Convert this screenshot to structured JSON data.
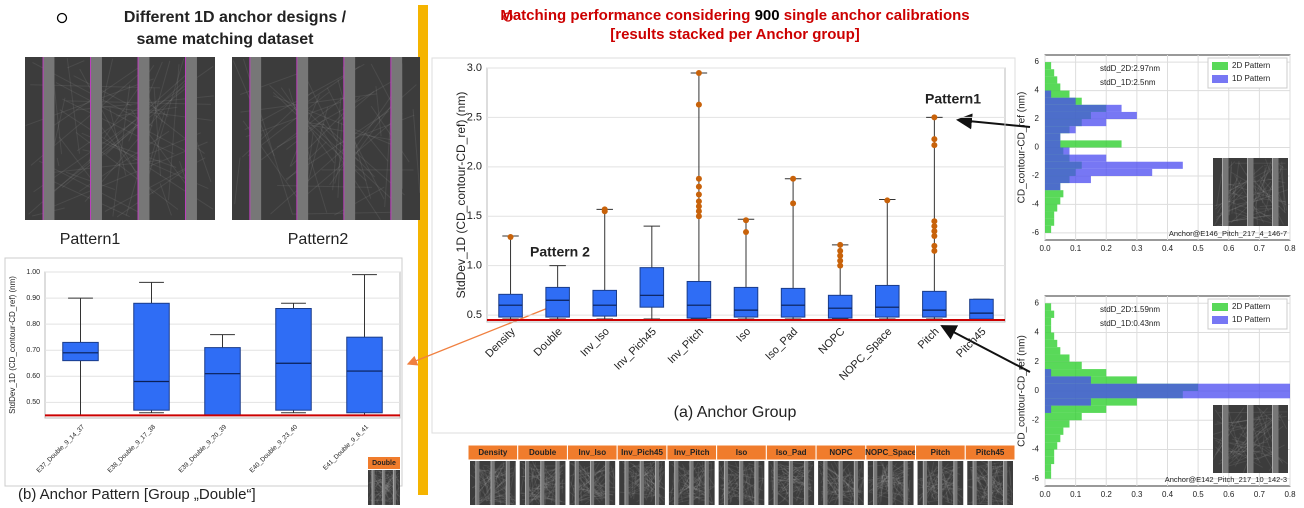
{
  "slide": {
    "left_heading": [
      "Different 1D anchor designs /",
      "same matching dataset"
    ],
    "pattern_labels": [
      "Pattern1",
      "Pattern2"
    ],
    "center_heading": [
      "Matching performance considering ",
      "900",
      " single anchor calibrations [results stacked per Anchor group]"
    ],
    "strip_labels": [
      "Density",
      "Double",
      "Inv_Iso",
      "Inv_Pich45",
      "Inv_Pitch",
      "Iso",
      "Iso_Pad",
      "NOPC",
      "NOPC_Space",
      "Pitch",
      "Pitch45"
    ],
    "thumb_label": "Double"
  },
  "chart_data": [
    {
      "type": "box",
      "ylabel": "StdDev_1D (CD_contour-CD_ref) (nm)",
      "xlabel": "(a) Anchor Group",
      "categories": [
        "Density",
        "Double",
        "Inv_Iso",
        "Inv_Pich45",
        "Inv_Pitch",
        "Iso",
        "Iso_Pad",
        "NOPC",
        "NOPC_Space",
        "Pitch",
        "Pitch45"
      ],
      "whisker_low": [
        0.46,
        0.46,
        0.46,
        0.46,
        0.46,
        0.46,
        0.46,
        0.46,
        0.46,
        0.46,
        0.46
      ],
      "q1": [
        0.48,
        0.48,
        0.49,
        0.58,
        0.47,
        0.48,
        0.48,
        0.47,
        0.48,
        0.48,
        0.46
      ],
      "median": [
        0.6,
        0.65,
        0.6,
        0.7,
        0.6,
        0.55,
        0.6,
        0.57,
        0.58,
        0.55,
        0.52
      ],
      "q3": [
        0.71,
        0.78,
        0.75,
        0.98,
        0.84,
        0.78,
        0.77,
        0.7,
        0.8,
        0.74,
        0.66
      ],
      "whisker_high": [
        1.3,
        1.0,
        1.57,
        1.4,
        2.95,
        1.47,
        1.88,
        1.21,
        1.67,
        2.5,
        0.66
      ],
      "outliers": [
        [
          1.29
        ],
        [],
        [
          1.55,
          1.57
        ],
        [],
        [
          2.95,
          2.63,
          1.88,
          1.8,
          1.72,
          1.65,
          1.6,
          1.55,
          1.5
        ],
        [
          1.46,
          1.34
        ],
        [
          1.88,
          1.63
        ],
        [
          1.21,
          1.15,
          1.1,
          1.05,
          1.0
        ],
        [
          1.66
        ],
        [
          2.5,
          2.28,
          2.22,
          1.45,
          1.4,
          1.35,
          1.3,
          1.2,
          1.15
        ],
        []
      ],
      "color": "#2f6df5",
      "outlier_color": "#c8620a",
      "ylim": [
        0.43,
        3.0
      ],
      "yticks": [
        0.5,
        {
          "value": 1,
          "label": "1.0"
        },
        1.5,
        {
          "value": 2,
          "label": "2.0"
        },
        2.5,
        {
          "value": 3,
          "label": "3.0"
        }
      ],
      "grid": true,
      "reference_line": {
        "value": 0.45,
        "color": "#cc0000"
      },
      "annotations": [
        {
          "text": "Pattern1"
        },
        {
          "text": "Pattern 2"
        }
      ]
    },
    {
      "type": "box",
      "ylabel": "StdDev_1D (CD_contour-CD_ref) (nm)",
      "xlabel": "(b) Anchor Pattern [Group „Double“]",
      "categories": [
        "E37_Double_9_14_37",
        "E38_Double_9_17_38",
        "E39_Double_9_20_39",
        "E40_Double_9_23_40",
        "E41_Double_9_8_41"
      ],
      "whisker_low": [
        0.45,
        0.46,
        0.45,
        0.46,
        0.45
      ],
      "q1": [
        0.66,
        0.47,
        0.45,
        0.47,
        0.46
      ],
      "median": [
        0.69,
        0.58,
        0.61,
        0.65,
        0.62
      ],
      "q3": [
        0.73,
        0.88,
        0.71,
        0.86,
        0.75
      ],
      "whisker_high": [
        0.9,
        0.96,
        0.76,
        0.88,
        0.99
      ],
      "outliers": [
        [],
        [],
        [],
        [],
        []
      ],
      "color": "#2f6df5",
      "outlier_color": "#c8620a",
      "ylim": [
        0.44,
        1.0
      ],
      "yticks": [
        {
          "value": 0.5,
          "label": "0.50"
        },
        {
          "value": 0.6,
          "label": "0.60"
        },
        {
          "value": 0.7,
          "label": "0.70"
        },
        {
          "value": 0.8,
          "label": "0.80"
        },
        {
          "value": 0.9,
          "label": "0.90"
        },
        {
          "value": 1,
          "label": "1.00"
        }
      ],
      "grid": true,
      "reference_line": {
        "value": 0.45,
        "color": "#cc0000"
      }
    },
    {
      "type": "histogram",
      "orientation": "horizontal",
      "ylabel": "CD_contour-CD_ref (nm)",
      "bins": [
        -6,
        -5.5,
        -5,
        -4.5,
        -4,
        -3.5,
        -3,
        -2.5,
        -2,
        -1.5,
        -1,
        -0.5,
        0,
        0.5,
        1,
        1.5,
        2,
        2.5,
        3,
        3.5,
        4,
        4.5,
        5,
        5.5,
        6
      ],
      "series": [
        {
          "name": "2D Pattern",
          "color": "#22cc22",
          "values": [
            0.02,
            0.03,
            0.03,
            0.04,
            0.05,
            0.06,
            0.05,
            0.08,
            0.1,
            0.12,
            0.08,
            0.06,
            0.25,
            0.05,
            0.08,
            0.12,
            0.15,
            0.2,
            0.12,
            0.08,
            0.05,
            0.04,
            0.03,
            0.02
          ]
        },
        {
          "name": "1D Pattern",
          "color": "#4a4af0",
          "values": [
            0,
            0,
            0,
            0,
            0,
            0,
            0.05,
            0.15,
            0.35,
            0.45,
            0.2,
            0.08,
            0.05,
            0.05,
            0.1,
            0.2,
            0.3,
            0.25,
            0.1,
            0.02,
            0,
            0,
            0,
            0
          ]
        }
      ],
      "xlim": [
        0,
        0.8
      ],
      "ylim": [
        -6.5,
        6.5
      ],
      "xticks": [
        {
          "value": 0,
          "label": "0.0"
        },
        0.1,
        0.2,
        0.3,
        0.4,
        0.5,
        0.6,
        0.7,
        0.8
      ],
      "yticks": [
        -6,
        -4,
        -2,
        0,
        2,
        4,
        6
      ],
      "grid": true,
      "legend": "upper right",
      "annotations": [
        {
          "text": "stdD_2D:2.97nm",
          "color": "#22aa22"
        },
        {
          "text": "stdD_1D:2.5nm",
          "color": "#3333dd"
        }
      ],
      "caption": "Anchor@E146_Pitch_217_4_146-7"
    },
    {
      "type": "histogram",
      "orientation": "horizontal",
      "ylabel": "CD_contour-CD_ref (nm)",
      "bins": [
        -6,
        -5.5,
        -5,
        -4.5,
        -4,
        -3.5,
        -3,
        -2.5,
        -2,
        -1.5,
        -1,
        -0.5,
        0,
        0.5,
        1,
        1.5,
        2,
        2.5,
        3,
        3.5,
        4,
        4.5,
        5,
        5.5,
        6
      ],
      "series": [
        {
          "name": "2D Pattern",
          "color": "#22cc22",
          "values": [
            0.02,
            0.02,
            0.03,
            0.03,
            0.04,
            0.05,
            0.06,
            0.08,
            0.12,
            0.2,
            0.3,
            0.45,
            0.5,
            0.3,
            0.2,
            0.12,
            0.08,
            0.05,
            0.04,
            0.03,
            0.02,
            0.02,
            0.03,
            0.02
          ]
        },
        {
          "name": "1D Pattern",
          "color": "#4a4af0",
          "values": [
            0,
            0,
            0,
            0,
            0,
            0,
            0,
            0,
            0,
            0.02,
            0.15,
            0.8,
            0.8,
            0.15,
            0.02,
            0,
            0,
            0,
            0,
            0,
            0,
            0,
            0,
            0
          ]
        }
      ],
      "xlim": [
        0,
        0.8
      ],
      "ylim": [
        -6.5,
        6.5
      ],
      "xticks": [
        {
          "value": 0,
          "label": "0.0"
        },
        0.1,
        0.2,
        0.3,
        0.4,
        0.5,
        0.6,
        0.7,
        0.8
      ],
      "yticks": [
        -6,
        -4,
        -2,
        0,
        2,
        4,
        6
      ],
      "grid": true,
      "legend": "upper right",
      "annotations": [
        {
          "text": "stdD_2D:1.59nm",
          "color": "#22aa22"
        },
        {
          "text": "stdD_1D:0.43nm",
          "color": "#3333dd"
        }
      ],
      "caption": "Anchor@E142_Pitch_217_10_142-3"
    }
  ]
}
